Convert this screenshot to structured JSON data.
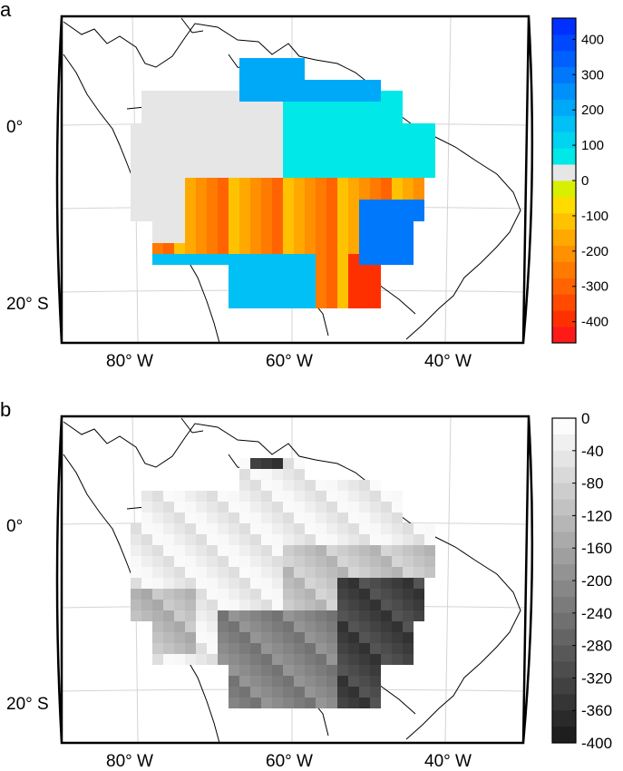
{
  "panels": [
    {
      "label": "a",
      "lon_labels": [
        "80° W",
        "60° W",
        "40° W"
      ],
      "lat_labels": [
        "0°",
        "20° S"
      ],
      "colorbar": {
        "scheme": "diverging-blue-red",
        "tick_labels": [
          "400",
          "300",
          "200",
          "100",
          "0",
          "-100",
          "-200",
          "-300",
          "-400"
        ],
        "min": -460,
        "max": 460,
        "colors": [
          "#ff1a1a",
          "#ff3000",
          "#ff4a00",
          "#ff6400",
          "#ff7a00",
          "#ff9000",
          "#ffa800",
          "#ffc200",
          "#ffdc00",
          "#d8f000",
          "#e6e6e6",
          "#00e8e8",
          "#00d4f0",
          "#00c0f5",
          "#00a8f8",
          "#0090fa",
          "#0078fc",
          "#0060fd",
          "#0048fe",
          "#0030ff"
        ]
      }
    },
    {
      "label": "b",
      "lon_labels": [
        "80° W",
        "60° W",
        "40° W"
      ],
      "lat_labels": [
        "0°",
        "20° S"
      ],
      "colorbar": {
        "scheme": "grayscale",
        "tick_labels": [
          "0",
          "-40",
          "-80",
          "-120",
          "-160",
          "-200",
          "-240",
          "-280",
          "-320",
          "-360",
          "-400"
        ],
        "min": -400,
        "max": 0
      }
    }
  ]
}
